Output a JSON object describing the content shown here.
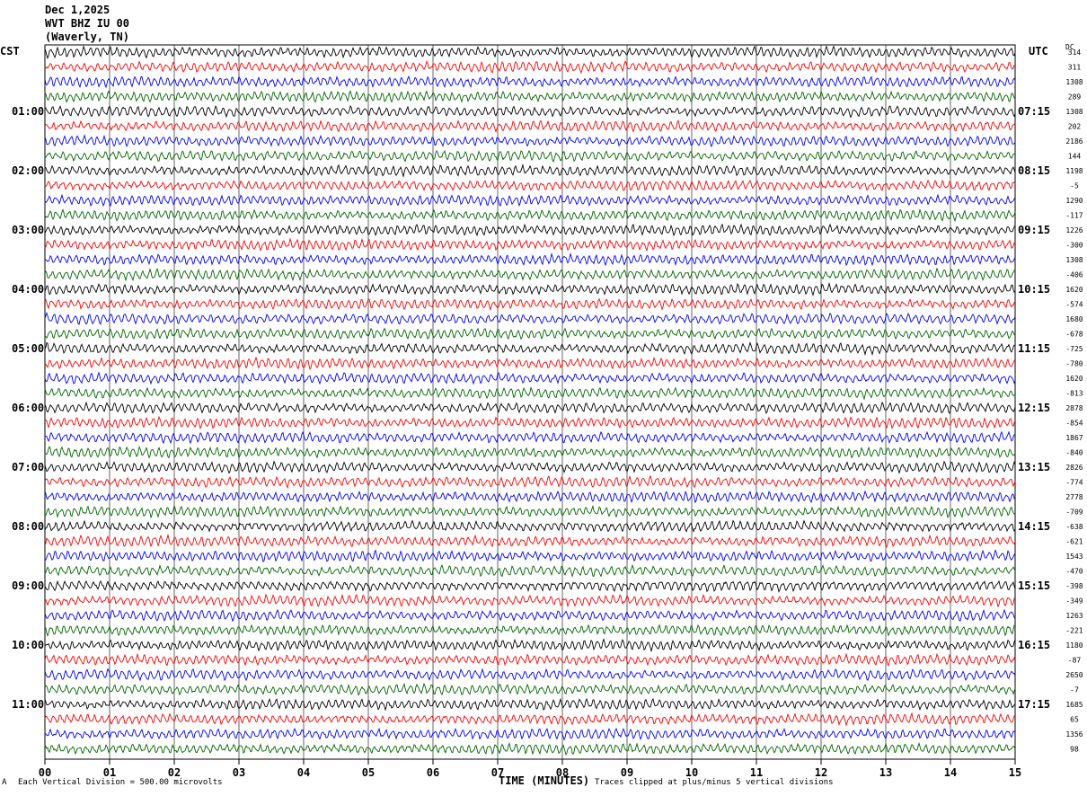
{
  "header": {
    "date": "Dec 1,2025",
    "station": "WVT BHZ IU 00",
    "location": "(Waverly, TN)"
  },
  "left_axis_title": "CST",
  "right_axis_title": "UTC",
  "dc_title": "DC",
  "footer": {
    "scale_note": "Each Vertical Division =  500.00 microvolts",
    "xlabel": "TIME (MINUTES)",
    "clip_note": "Traces clipped at plus/minus 5 vertical divisions",
    "corner_mark": "A"
  },
  "chart_data": {
    "type": "line",
    "title": "",
    "xlabel": "TIME (MINUTES)",
    "x_ticks": [
      "00",
      "01",
      "02",
      "03",
      "04",
      "05",
      "06",
      "07",
      "08",
      "09",
      "10",
      "11",
      "12",
      "13",
      "14",
      "15"
    ],
    "xlim": [
      0,
      15
    ],
    "grid": "vertical",
    "trace_colors": [
      "#000000",
      "#ff0000",
      "#0000ff",
      "#006400"
    ],
    "left_hour_labels": [
      "01:00",
      "02:00",
      "03:00",
      "04:00",
      "05:00",
      "06:00",
      "07:00",
      "08:00",
      "09:00",
      "10:00",
      "11:00"
    ],
    "right_hour_labels": [
      "07:15",
      "08:15",
      "09:15",
      "10:15",
      "11:15",
      "12:15",
      "13:15",
      "14:15",
      "15:15",
      "16:15",
      "17:15"
    ],
    "dc_offsets": [
      "314",
      "311",
      "1308",
      "289",
      "1308",
      "202",
      "2186",
      "144",
      "1198",
      "-5",
      "1290",
      "-117",
      "1226",
      "-300",
      "1308",
      "-406",
      "1620",
      "-574",
      "1680",
      "-678",
      "-725",
      "-780",
      "1620",
      "-813",
      "2878",
      "-854",
      "1867",
      "-840",
      "2826",
      "-774",
      "2778",
      "-709",
      "-638",
      "-621",
      "1543",
      "-470",
      "-398",
      "-349",
      "1263",
      "-221",
      "1180",
      "-87",
      "2650",
      "-7",
      "1685",
      "65",
      "1356",
      "98"
    ],
    "rows": 48,
    "vertical_division_microvolts": 500.0
  }
}
